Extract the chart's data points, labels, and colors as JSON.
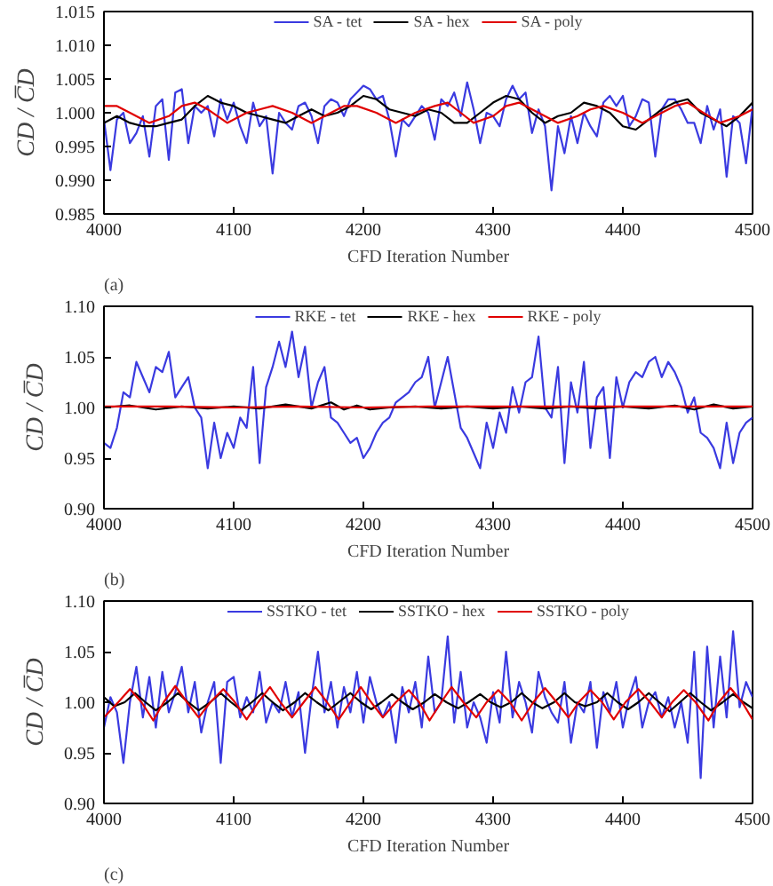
{
  "chart_data": [
    {
      "type": "line",
      "xlabel": "CFD Iteration Number",
      "ylabel": "CD / C̅D",
      "annotations": [
        "(a)"
      ],
      "legend": "top",
      "grid": false,
      "xlim": [
        4000,
        4500
      ],
      "xticks": [
        4000,
        4100,
        4200,
        4300,
        4400,
        4500
      ],
      "ylim": [
        0.985,
        1.015
      ],
      "yticks": [
        {
          "value": 0.985,
          "label": "0.985"
        },
        {
          "value": 0.99,
          "label": "0.990"
        },
        {
          "value": 0.995,
          "label": "0.995"
        },
        {
          "value": 1.0,
          "label": "1.000"
        },
        {
          "value": 1.005,
          "label": "1.005"
        },
        {
          "value": 1.01,
          "label": "1.010"
        },
        {
          "value": 1.015,
          "label": "1.015"
        }
      ],
      "x": [
        4000,
        4005,
        4010,
        4015,
        4020,
        4025,
        4030,
        4035,
        4040,
        4045,
        4050,
        4055,
        4060,
        4065,
        4070,
        4075,
        4080,
        4085,
        4090,
        4095,
        4100,
        4105,
        4110,
        4115,
        4120,
        4125,
        4130,
        4135,
        4140,
        4145,
        4150,
        4155,
        4160,
        4165,
        4170,
        4175,
        4180,
        4185,
        4190,
        4195,
        4200,
        4205,
        4210,
        4215,
        4220,
        4225,
        4230,
        4235,
        4240,
        4245,
        4250,
        4255,
        4260,
        4265,
        4270,
        4275,
        4280,
        4285,
        4290,
        4295,
        4300,
        4305,
        4310,
        4315,
        4320,
        4325,
        4330,
        4335,
        4340,
        4345,
        4350,
        4355,
        4360,
        4365,
        4370,
        4375,
        4380,
        4385,
        4390,
        4395,
        4400,
        4405,
        4410,
        4415,
        4420,
        4425,
        4430,
        4435,
        4440,
        4445,
        4450,
        4455,
        4460,
        4465,
        4470,
        4475,
        4480,
        4485,
        4490,
        4495,
        4500
      ],
      "series": [
        {
          "name": "SA - tet",
          "color": "#3a3ae0",
          "values": [
            0.999,
            0.9915,
            0.999,
            1.0,
            0.9955,
            0.997,
            0.9995,
            0.9935,
            1.001,
            1.002,
            0.993,
            1.003,
            1.0035,
            0.9955,
            1.001,
            1.0,
            1.001,
            0.9965,
            1.002,
            0.999,
            1.0015,
            0.998,
            0.9955,
            1.0015,
            0.998,
            0.9995,
            0.991,
            1.0,
            0.9985,
            0.9975,
            1.001,
            1.0015,
            0.9995,
            0.9955,
            1.001,
            1.002,
            1.0015,
            0.9995,
            1.002,
            1.003,
            1.004,
            1.0035,
            1.002,
            1.0025,
            0.999,
            0.9935,
            0.999,
            0.998,
            0.9995,
            1.001,
            1.0,
            0.996,
            1.002,
            1.001,
            1.003,
            0.9995,
            1.0045,
            1.0005,
            0.9955,
            1.0,
            0.9995,
            0.998,
            1.002,
            1.004,
            1.002,
            1.003,
            0.997,
            1.0005,
            0.998,
            0.9885,
            0.998,
            0.994,
            0.9995,
            0.9955,
            1.0,
            0.998,
            0.9965,
            1.0015,
            1.0025,
            1.001,
            1.0025,
            0.998,
            0.9995,
            1.002,
            1.0015,
            0.9935,
            1.0005,
            1.002,
            1.002,
            1.0005,
            0.9985,
            0.9985,
            0.9955,
            1.001,
            0.9975,
            1.0005,
            0.9905,
            0.9995,
            0.9985,
            0.9925,
            1.001
          ]
        },
        {
          "name": "SA - hex",
          "color": "#000000",
          "x": [
            4000,
            4010,
            4020,
            4030,
            4040,
            4050,
            4060,
            4070,
            4080,
            4090,
            4100,
            4110,
            4120,
            4130,
            4140,
            4150,
            4160,
            4170,
            4180,
            4190,
            4200,
            4210,
            4220,
            4230,
            4240,
            4250,
            4260,
            4270,
            4280,
            4290,
            4300,
            4310,
            4320,
            4330,
            4340,
            4350,
            4360,
            4370,
            4380,
            4390,
            4400,
            4410,
            4420,
            4430,
            4440,
            4450,
            4460,
            4470,
            4480,
            4490,
            4500
          ],
          "values": [
            0.9985,
            0.9995,
            0.9985,
            0.998,
            0.998,
            0.9985,
            0.999,
            1.001,
            1.0025,
            1.0015,
            1.001,
            1.0,
            0.9995,
            0.999,
            0.9985,
            0.9995,
            1.0005,
            0.9995,
            1.0,
            1.001,
            1.0025,
            1.002,
            1.0005,
            1.0,
            0.9995,
            1.0005,
            1.0,
            0.9985,
            0.9985,
            1.0,
            1.0015,
            1.0025,
            1.002,
            1.0,
            0.9985,
            0.9995,
            1.0,
            1.0015,
            1.001,
            1.0,
            0.998,
            0.9975,
            0.999,
            1.0005,
            1.0015,
            1.002,
            1.0,
            0.999,
            0.998,
            0.9995,
            1.0015
          ]
        },
        {
          "name": "SA - poly",
          "color": "#e00000",
          "x": [
            4000,
            4010,
            4020,
            4035,
            4050,
            4060,
            4070,
            4080,
            4095,
            4110,
            4120,
            4130,
            4145,
            4160,
            4175,
            4185,
            4195,
            4210,
            4225,
            4240,
            4255,
            4265,
            4275,
            4285,
            4300,
            4310,
            4320,
            4335,
            4350,
            4365,
            4375,
            4385,
            4400,
            4415,
            4430,
            4440,
            4450,
            4462,
            4475,
            4490,
            4500
          ],
          "values": [
            1.001,
            1.001,
            1.0,
            0.9985,
            0.9995,
            1.001,
            1.0015,
            1.0005,
            0.9985,
            1.0,
            1.0005,
            1.001,
            1.0,
            0.9985,
            1.0,
            1.001,
            1.001,
            1.0,
            0.9985,
            1.0,
            1.001,
            1.0015,
            1.0,
            0.9985,
            0.9995,
            1.001,
            1.0015,
            1.0,
            0.9985,
            0.9995,
            1.0005,
            1.001,
            1.0,
            0.9985,
            1.0,
            1.001,
            1.0015,
            1.0,
            0.9985,
            0.9995,
            1.0005
          ]
        }
      ]
    },
    {
      "type": "line",
      "xlabel": "CFD Iteration Number",
      "ylabel": "CD / C̅D",
      "annotations": [
        "(b)"
      ],
      "legend": "top",
      "grid": false,
      "xlim": [
        4000,
        4500
      ],
      "xticks": [
        4000,
        4100,
        4200,
        4300,
        4400,
        4500
      ],
      "ylim": [
        0.9,
        1.1
      ],
      "yticks": [
        {
          "value": 0.9,
          "label": "0.90"
        },
        {
          "value": 0.95,
          "label": "0.95"
        },
        {
          "value": 1.0,
          "label": "1.00"
        },
        {
          "value": 1.05,
          "label": "1.05"
        },
        {
          "value": 1.1,
          "label": "1.10"
        }
      ],
      "x": [
        4000,
        4005,
        4010,
        4015,
        4020,
        4025,
        4030,
        4035,
        4040,
        4045,
        4050,
        4055,
        4060,
        4065,
        4070,
        4075,
        4080,
        4085,
        4090,
        4095,
        4100,
        4105,
        4110,
        4115,
        4120,
        4125,
        4130,
        4135,
        4140,
        4145,
        4150,
        4155,
        4160,
        4165,
        4170,
        4175,
        4180,
        4185,
        4190,
        4195,
        4200,
        4205,
        4210,
        4215,
        4220,
        4225,
        4230,
        4235,
        4240,
        4245,
        4250,
        4255,
        4260,
        4265,
        4270,
        4275,
        4280,
        4285,
        4290,
        4295,
        4300,
        4305,
        4310,
        4315,
        4320,
        4325,
        4330,
        4335,
        4340,
        4345,
        4350,
        4355,
        4360,
        4365,
        4370,
        4375,
        4380,
        4385,
        4390,
        4395,
        4400,
        4405,
        4410,
        4415,
        4420,
        4425,
        4430,
        4435,
        4440,
        4445,
        4450,
        4455,
        4460,
        4465,
        4470,
        4475,
        4480,
        4485,
        4490,
        4495,
        4500
      ],
      "series": [
        {
          "name": "RKE - tet",
          "color": "#3a3ae0",
          "values": [
            0.965,
            0.96,
            0.98,
            1.015,
            1.01,
            1.045,
            1.03,
            1.015,
            1.04,
            1.035,
            1.055,
            1.01,
            1.02,
            1.03,
            1.0,
            0.99,
            0.94,
            0.985,
            0.95,
            0.975,
            0.96,
            0.99,
            0.98,
            1.04,
            0.945,
            1.02,
            1.04,
            1.065,
            1.04,
            1.075,
            1.03,
            1.06,
            1.0,
            1.025,
            1.04,
            0.99,
            0.985,
            0.975,
            0.965,
            0.97,
            0.95,
            0.96,
            0.975,
            0.985,
            0.99,
            1.005,
            1.01,
            1.015,
            1.025,
            1.03,
            1.05,
            1.0,
            1.025,
            1.05,
            1.015,
            0.98,
            0.97,
            0.955,
            0.94,
            0.985,
            0.96,
            0.995,
            0.975,
            1.02,
            0.995,
            1.025,
            1.03,
            1.07,
            1.0,
            0.99,
            1.04,
            0.945,
            1.025,
            0.995,
            1.045,
            0.96,
            1.01,
            1.02,
            0.95,
            1.03,
            1.0,
            1.025,
            1.035,
            1.03,
            1.045,
            1.05,
            1.03,
            1.045,
            1.035,
            1.02,
            0.995,
            1.01,
            0.975,
            0.97,
            0.96,
            0.94,
            0.985,
            0.945,
            0.975,
            0.985,
            0.99
          ]
        },
        {
          "name": "RKE - hex",
          "color": "#000000",
          "x": [
            4000,
            4020,
            4040,
            4060,
            4080,
            4100,
            4120,
            4140,
            4160,
            4175,
            4185,
            4195,
            4205,
            4220,
            4240,
            4260,
            4280,
            4300,
            4320,
            4340,
            4360,
            4380,
            4400,
            4420,
            4440,
            4455,
            4470,
            4485,
            4500
          ],
          "values": [
            1.0,
            1.002,
            0.998,
            1.001,
            0.999,
            1.001,
            0.999,
            1.003,
            0.999,
            1.005,
            0.998,
            1.002,
            0.998,
            1.0,
            1.001,
            0.999,
            1.001,
            0.999,
            1.001,
            0.999,
            1.001,
            0.999,
            1.001,
            0.999,
            1.002,
            0.998,
            1.003,
            0.999,
            1.001
          ]
        },
        {
          "name": "RKE - poly",
          "color": "#e00000",
          "x": [
            4000,
            4050,
            4100,
            4150,
            4200,
            4250,
            4300,
            4350,
            4400,
            4450,
            4500
          ],
          "values": [
            1.001,
            1.001,
            1.0,
            1.001,
            1.0,
            1.001,
            1.001,
            1.001,
            1.001,
            1.001,
            1.001
          ]
        }
      ]
    },
    {
      "type": "line",
      "xlabel": "CFD Iteration Number",
      "ylabel": "CD / C̅D",
      "annotations": [
        "(c)"
      ],
      "legend": "top",
      "grid": false,
      "xlim": [
        4000,
        4500
      ],
      "xticks": [
        4000,
        4100,
        4200,
        4300,
        4400,
        4500
      ],
      "ylim": [
        0.9,
        1.1
      ],
      "yticks": [
        {
          "value": 0.9,
          "label": "0.90"
        },
        {
          "value": 0.95,
          "label": "0.95"
        },
        {
          "value": 1.0,
          "label": "1.00"
        },
        {
          "value": 1.05,
          "label": "1.05"
        },
        {
          "value": 1.1,
          "label": "1.10"
        }
      ],
      "x": [
        4000,
        4005,
        4010,
        4015,
        4020,
        4025,
        4030,
        4035,
        4040,
        4045,
        4050,
        4055,
        4060,
        4065,
        4070,
        4075,
        4080,
        4085,
        4090,
        4095,
        4100,
        4105,
        4110,
        4115,
        4120,
        4125,
        4130,
        4135,
        4140,
        4145,
        4150,
        4155,
        4160,
        4165,
        4170,
        4175,
        4180,
        4185,
        4190,
        4195,
        4200,
        4205,
        4210,
        4215,
        4220,
        4225,
        4230,
        4235,
        4240,
        4245,
        4250,
        4255,
        4260,
        4265,
        4270,
        4275,
        4280,
        4285,
        4290,
        4295,
        4300,
        4305,
        4310,
        4315,
        4320,
        4325,
        4330,
        4335,
        4340,
        4345,
        4350,
        4355,
        4360,
        4365,
        4370,
        4375,
        4380,
        4385,
        4390,
        4395,
        4400,
        4405,
        4410,
        4415,
        4420,
        4425,
        4430,
        4435,
        4440,
        4445,
        4450,
        4455,
        4460,
        4465,
        4470,
        4475,
        4480,
        4485,
        4490,
        4495,
        4500
      ],
      "series": [
        {
          "name": "SSTKO - tet",
          "color": "#3a3ae0",
          "values": [
            0.975,
            1.005,
            0.99,
            0.94,
            1.0,
            1.035,
            0.985,
            1.025,
            0.975,
            1.03,
            0.99,
            1.01,
            1.035,
            0.99,
            1.02,
            0.97,
            1.0,
            1.02,
            0.94,
            1.02,
            1.025,
            0.985,
            1.005,
            0.99,
            1.03,
            0.98,
            1.0,
            0.99,
            1.02,
            0.985,
            1.01,
            0.95,
            1.005,
            1.05,
            0.99,
            1.02,
            0.975,
            1.015,
            0.99,
            1.03,
            0.98,
            1.025,
            1.0,
            0.985,
            1.0,
            0.96,
            1.015,
            0.99,
            1.02,
            0.975,
            1.045,
            0.99,
            1.0,
            1.065,
            0.98,
            1.03,
            0.975,
            1.0,
            0.985,
            0.96,
            1.01,
            0.98,
            1.05,
            0.985,
            1.02,
            1.0,
            0.97,
            1.03,
            1.005,
            0.99,
            0.98,
            1.02,
            0.96,
            1.0,
            0.99,
            1.02,
            0.955,
            1.01,
            0.99,
            1.02,
            0.975,
            1.005,
            1.025,
            0.975,
            1.0,
            1.01,
            0.985,
            1.005,
            0.975,
            1.0,
            0.96,
            1.05,
            0.925,
            1.055,
            0.975,
            1.045,
            0.985,
            1.07,
            0.995,
            1.02,
            1.005
          ]
        },
        {
          "name": "SSTKO - hex",
          "color": "#000000",
          "x": [
            4000,
            4008,
            4016,
            4024,
            4032,
            4040,
            4049,
            4057,
            4065,
            4073,
            4082,
            4090,
            4098,
            4106,
            4114,
            4122,
            4130,
            4138,
            4147,
            4155,
            4164,
            4173,
            4181,
            4190,
            4198,
            4206,
            4214,
            4222,
            4230,
            4238,
            4247,
            4255,
            4264,
            4273,
            4281,
            4290,
            4298,
            4306,
            4314,
            4322,
            4330,
            4338,
            4347,
            4355,
            4363,
            4371,
            4380,
            4388,
            4396,
            4404,
            4412,
            4420,
            4428,
            4436,
            4444,
            4452,
            4460,
            4468,
            4477,
            4485,
            4493,
            4500
          ],
          "values": [
            1.005,
            0.996,
            1.0,
            1.009,
            1.0,
            0.992,
            1.0,
            1.009,
            1.0,
            0.992,
            1.0,
            1.009,
            1.0,
            0.992,
            1.0,
            1.009,
            1.0,
            0.992,
            1.0,
            1.009,
            1.0,
            0.992,
            1.0,
            1.009,
            1.0,
            0.993,
            1.0,
            1.008,
            1.0,
            0.993,
            1.0,
            1.008,
            1.0,
            0.994,
            1.0,
            1.008,
            1.0,
            0.995,
            1.0,
            1.009,
            1.0,
            0.994,
            1.0,
            1.009,
            1.0,
            0.996,
            1.0,
            1.009,
            1.0,
            0.993,
            1.0,
            1.009,
            1.0,
            0.991,
            1.0,
            1.009,
            1.0,
            0.992,
            1.0,
            1.008,
            1.0,
            0.994
          ]
        },
        {
          "name": "SSTKO - poly",
          "color": "#e00000",
          "x": [
            4000,
            4011,
            4020,
            4029,
            4038,
            4046,
            4055,
            4064,
            4073,
            4082,
            4092,
            4101,
            4110,
            4119,
            4128,
            4136,
            4145,
            4154,
            4163,
            4172,
            4181,
            4190,
            4198,
            4206,
            4215,
            4225,
            4235,
            4243,
            4251,
            4260,
            4268,
            4277,
            4287,
            4295,
            4304,
            4313,
            4322,
            4331,
            4340,
            4349,
            4358,
            4366,
            4375,
            4384,
            4393,
            4402,
            4412,
            4421,
            4430,
            4438,
            4447,
            4456,
            4466,
            4474,
            4483,
            4492,
            4500
          ],
          "values": [
            0.985,
            1.0,
            1.013,
            1.0,
            0.982,
            1.0,
            1.016,
            1.0,
            0.985,
            1.0,
            1.013,
            1.0,
            0.983,
            1.0,
            1.015,
            1.0,
            0.985,
            1.0,
            1.015,
            1.0,
            0.983,
            1.0,
            1.015,
            1.0,
            0.985,
            1.0,
            1.012,
            1.0,
            0.982,
            1.0,
            1.015,
            1.0,
            0.985,
            1.0,
            1.012,
            1.0,
            0.982,
            1.0,
            1.014,
            1.0,
            0.985,
            1.0,
            1.012,
            1.0,
            0.983,
            1.0,
            1.013,
            1.0,
            0.985,
            1.0,
            1.012,
            1.0,
            0.982,
            1.0,
            1.014,
            1.0,
            0.983
          ]
        }
      ]
    }
  ]
}
